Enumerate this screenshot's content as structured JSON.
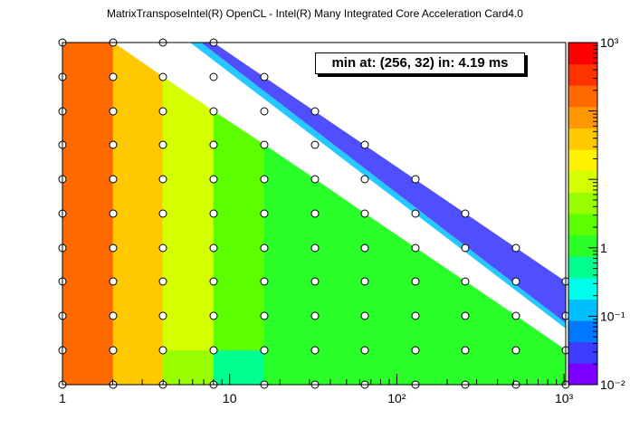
{
  "title": "MatrixTransposeIntel(R) OpenCL - Intel(R) Many Integrated Core Acceleration Card4.0",
  "annotation": "min at: (256, 32) in: 4.19 ms",
  "chart_data": {
    "type": "heatmap",
    "title": "MatrixTransposeIntel(R) OpenCL - Intel(R) Many Integrated Core Acceleration Card4.0",
    "xscale": "log2",
    "yscale": "log2",
    "xlim": [
      1,
      1024
    ],
    "ylim": [
      1,
      1024
    ],
    "x_tick_labels": [
      "1",
      "10",
      "10²",
      "10³"
    ],
    "z_scale": "log",
    "zlim": [
      0.01,
      1000
    ],
    "z_tick_labels": [
      "10³",
      "1",
      "10⁻¹",
      "10⁻²"
    ],
    "palette": [
      "#7b00ff",
      "#3c3cff",
      "#0077ff",
      "#00bfff",
      "#00ffea",
      "#00ff90",
      "#2aff2a",
      "#5cff00",
      "#99ff00",
      "#d4ff00",
      "#fff200",
      "#ffc800",
      "#ff9800",
      "#ff6a00",
      "#ff3300",
      "#ff0000"
    ],
    "y_values": [
      1,
      2,
      4,
      8,
      16,
      32,
      64,
      128,
      256,
      512,
      1024
    ],
    "rows": [
      {
        "y": 1024,
        "x": [
          1,
          2,
          4,
          8
        ]
      },
      {
        "y": 512,
        "x": [
          1,
          2,
          4,
          8,
          16
        ]
      },
      {
        "y": 256,
        "x": [
          1,
          2,
          4,
          8,
          16,
          32
        ]
      },
      {
        "y": 128,
        "x": [
          1,
          2,
          4,
          8,
          16,
          32,
          64
        ]
      },
      {
        "y": 64,
        "x": [
          1,
          2,
          4,
          8,
          16,
          32,
          64,
          128
        ]
      },
      {
        "y": 32,
        "x": [
          1,
          2,
          4,
          8,
          16,
          32,
          64,
          128,
          256
        ]
      },
      {
        "y": 16,
        "x": [
          1,
          2,
          4,
          8,
          16,
          32,
          64,
          128,
          256,
          512
        ]
      },
      {
        "y": 8,
        "x": [
          1,
          2,
          4,
          8,
          16,
          32,
          64,
          128,
          256,
          512,
          1024
        ]
      },
      {
        "y": 4,
        "x": [
          1,
          2,
          4,
          8,
          16,
          32,
          64,
          128,
          256,
          512,
          1024
        ]
      },
      {
        "y": 2,
        "x": [
          1,
          2,
          4,
          8,
          16,
          32,
          64,
          128,
          256,
          512,
          1024
        ]
      },
      {
        "y": 1,
        "x": [
          1,
          2,
          4,
          8,
          16,
          32,
          64,
          128,
          256,
          512,
          1024
        ]
      }
    ],
    "minimum": {
      "x": 256,
      "y": 32,
      "time_ms": 4.19
    }
  }
}
